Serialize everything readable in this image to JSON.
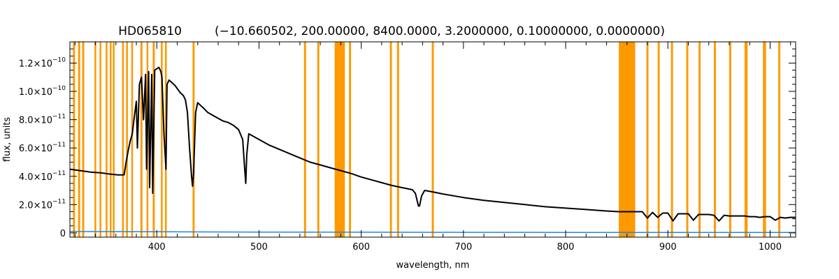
{
  "chart_data": {
    "type": "line",
    "title": "HD065810",
    "subtitle": "(−10.660502, 200.00000, 8400.0000, 3.2000000, 0.10000000, 0.0000000)",
    "xlabel": "wavelength, nm",
    "ylabel": "flux, units",
    "xlim": [
      315,
      1025
    ],
    "ylim": [
      -3e-12,
      1.35e-10
    ],
    "grid": false,
    "x_ticks": [
      {
        "value": 400,
        "label": "400"
      },
      {
        "value": 500,
        "label": "500"
      },
      {
        "value": 600,
        "label": "600"
      },
      {
        "value": 700,
        "label": "700"
      },
      {
        "value": 800,
        "label": "800"
      },
      {
        "value": 900,
        "label": "900"
      },
      {
        "value": 1000,
        "label": "1000"
      }
    ],
    "y_ticks": [
      {
        "value": 0,
        "mantissa": "0",
        "exponent": ""
      },
      {
        "value": 2e-11,
        "mantissa": "2.0×10",
        "exponent": "−11"
      },
      {
        "value": 4e-11,
        "mantissa": "4.0×10",
        "exponent": "−11"
      },
      {
        "value": 6e-11,
        "mantissa": "6.0×10",
        "exponent": "−11"
      },
      {
        "value": 8e-11,
        "mantissa": "8.0×10",
        "exponent": "−11"
      },
      {
        "value": 1e-10,
        "mantissa": "1.0×10",
        "exponent": "−10"
      },
      {
        "value": 1.2e-10,
        "mantissa": "1.2×10",
        "exponent": "−10"
      }
    ],
    "masked_bands": [
      [
        318,
        320
      ],
      [
        323,
        325
      ],
      [
        327,
        329
      ],
      [
        339,
        340
      ],
      [
        344,
        345
      ],
      [
        350,
        351
      ],
      [
        354,
        355
      ],
      [
        357,
        358
      ],
      [
        366,
        367
      ],
      [
        370,
        371
      ],
      [
        375,
        376
      ],
      [
        384,
        386
      ],
      [
        390,
        391
      ],
      [
        396,
        398
      ],
      [
        404,
        405
      ],
      [
        408,
        409
      ],
      [
        435,
        437
      ],
      [
        544,
        546
      ],
      [
        557,
        559
      ],
      [
        574,
        584
      ],
      [
        588,
        590
      ],
      [
        628,
        630
      ],
      [
        635,
        637
      ],
      [
        669,
        671
      ],
      [
        852,
        868
      ],
      [
        879,
        881
      ],
      [
        890,
        892
      ],
      [
        903,
        905
      ],
      [
        918,
        920
      ],
      [
        930,
        932
      ],
      [
        945,
        947
      ],
      [
        960,
        962
      ],
      [
        975,
        978
      ],
      [
        993,
        996
      ],
      [
        1008,
        1010
      ]
    ],
    "series": [
      {
        "color": "#000000",
        "x": [
          315,
          325,
          335,
          345,
          355,
          362,
          366,
          368,
          370,
          372,
          374,
          376,
          378,
          380,
          381,
          383,
          385,
          387,
          389,
          390,
          392,
          393,
          395,
          396,
          398,
          400,
          402,
          404,
          405,
          407,
          409,
          410,
          412,
          415,
          418,
          420,
          423,
          426,
          428,
          430,
          432,
          434,
          435,
          436,
          437,
          438,
          440,
          443,
          446,
          450,
          455,
          460,
          465,
          470,
          475,
          480,
          484,
          486,
          487,
          488,
          490,
          495,
          500,
          510,
          520,
          530,
          540,
          550,
          560,
          570,
          580,
          590,
          600,
          610,
          620,
          630,
          640,
          650,
          653,
          656,
          657,
          659,
          662,
          670,
          680,
          700,
          720,
          740,
          760,
          780,
          800,
          820,
          840,
          852,
          875,
          880,
          885,
          890,
          895,
          900,
          905,
          910,
          915,
          920,
          925,
          930,
          935,
          940,
          945,
          950,
          955,
          960,
          965,
          970,
          975,
          980,
          985,
          990,
          995,
          1000,
          1005,
          1010,
          1015,
          1020,
          1025
        ],
        "y": [
          4.5e-11,
          4.4e-11,
          4.3e-11,
          4.25e-11,
          4.15e-11,
          4.1e-11,
          4.1e-11,
          4.1e-11,
          5e-11,
          5.8e-11,
          6.5e-11,
          7e-11,
          8.2e-11,
          9.3e-11,
          6e-11,
          1.05e-10,
          1.1e-10,
          8e-11,
          1.12e-10,
          4.5e-11,
          1.14e-10,
          3.2e-11,
          1.12e-10,
          2.8e-11,
          1.15e-10,
          1.16e-10,
          1.17e-10,
          1.14e-10,
          1.1e-10,
          7e-11,
          4.5e-11,
          1.05e-10,
          1.08e-10,
          1.06e-10,
          1.04e-10,
          1.02e-10,
          9.9e-11,
          9.7e-11,
          9.4e-11,
          8.5e-11,
          6e-11,
          4e-11,
          3.3e-11,
          4.2e-11,
          6.5e-11,
          8.5e-11,
          9.2e-11,
          9e-11,
          8.8e-11,
          8.5e-11,
          8.3e-11,
          8.1e-11,
          7.9e-11,
          7.8e-11,
          7.6e-11,
          7.3e-11,
          6.6e-11,
          4.5e-11,
          3.5e-11,
          5.5e-11,
          7e-11,
          6.8e-11,
          6.6e-11,
          6.2e-11,
          5.9e-11,
          5.6e-11,
          5.3e-11,
          5e-11,
          4.8e-11,
          4.6e-11,
          4.4e-11,
          4.2e-11,
          3.95e-11,
          3.75e-11,
          3.55e-11,
          3.35e-11,
          3.2e-11,
          3.05e-11,
          2.8e-11,
          1.9e-11,
          1.9e-11,
          2.6e-11,
          3e-11,
          2.9e-11,
          2.75e-11,
          2.5e-11,
          2.3e-11,
          2.15e-11,
          2e-11,
          1.85e-11,
          1.75e-11,
          1.65e-11,
          1.55e-11,
          1.5e-11,
          1.5e-11,
          1.05e-11,
          1.45e-11,
          1.1e-11,
          1.4e-11,
          1.4e-11,
          8.5e-12,
          1.35e-11,
          1.35e-11,
          1.35e-11,
          9e-12,
          1.3e-11,
          1.3e-11,
          1.3e-11,
          1.25e-11,
          8.5e-12,
          1.25e-11,
          1.2e-11,
          1.2e-11,
          1.2e-11,
          1.2e-11,
          1.15e-11,
          1.15e-11,
          1.1e-11,
          1.15e-11,
          1.15e-11,
          9e-12,
          1.1e-11,
          1.05e-11,
          1.1e-11,
          1.1e-11
        ]
      },
      {
        "color": "#1e88e5",
        "x": [
          315,
          400,
          500,
          600,
          700,
          800,
          900,
          1000,
          1025
        ],
        "y": [
          1e-12,
          8e-13,
          6e-13,
          5e-13,
          4e-13,
          3.5e-13,
          3e-13,
          3e-13,
          3e-13
        ]
      }
    ],
    "colors": {
      "mask": "#ff9900",
      "axes": "#000000"
    }
  }
}
